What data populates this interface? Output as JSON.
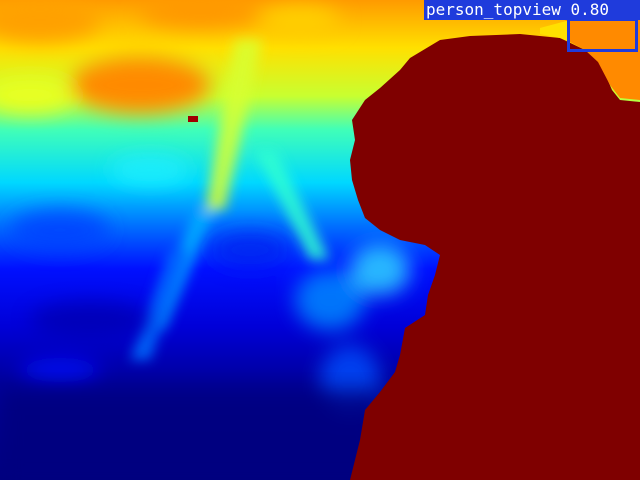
{
  "detection": {
    "label": "person_topview 0.80",
    "class_name": "person_topview",
    "confidence": 0.8,
    "box_color": "#1f3bdc",
    "label_text_color": "#ffffff"
  },
  "colormap": {
    "name": "jet",
    "near_color": "#00007f",
    "far_color": "#7f0000"
  }
}
